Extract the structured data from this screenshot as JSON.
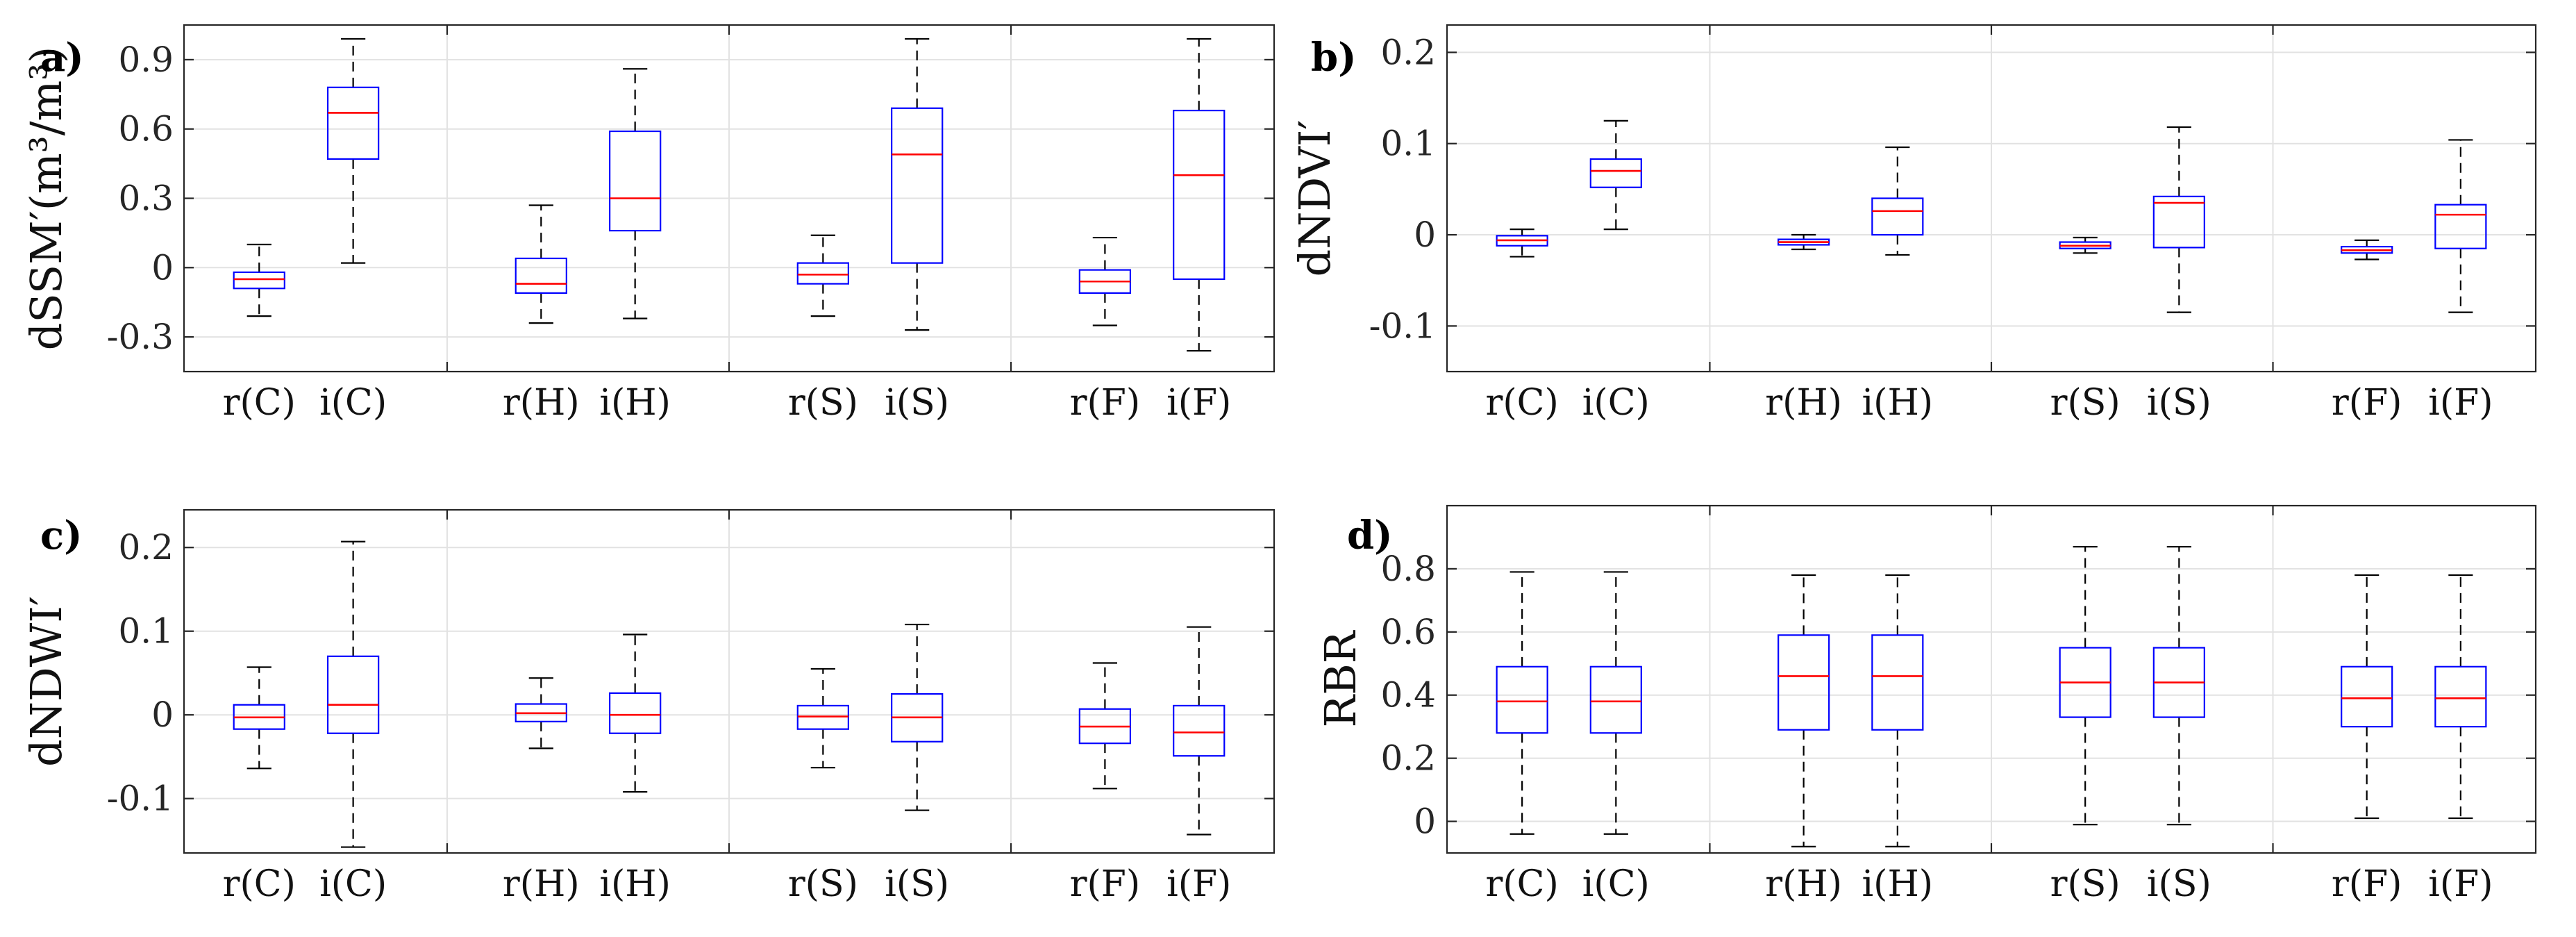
{
  "chart_data": [
    {
      "type": "box",
      "panel": "a)",
      "ylabel": "dSSM′(m³/m³)",
      "ylim": [
        -0.45,
        1.05
      ],
      "yticks": [
        -0.3,
        0,
        0.3,
        0.6,
        0.9
      ],
      "ytick_labels": [
        "-0.3",
        "0",
        "0.3",
        "0.6",
        "0.9"
      ],
      "categories": [
        "r(C)",
        "i(C)",
        "r(H)",
        "i(H)",
        "r(S)",
        "i(S)",
        "r(F)",
        "i(F)"
      ],
      "boxes": [
        {
          "min": -0.21,
          "q1": -0.09,
          "median": -0.05,
          "q3": -0.02,
          "max": 0.1
        },
        {
          "min": 0.02,
          "q1": 0.47,
          "median": 0.67,
          "q3": 0.78,
          "max": 0.99
        },
        {
          "min": -0.24,
          "q1": -0.11,
          "median": -0.07,
          "q3": 0.04,
          "max": 0.27
        },
        {
          "min": -0.22,
          "q1": 0.16,
          "median": 0.3,
          "q3": 0.59,
          "max": 0.86
        },
        {
          "min": -0.21,
          "q1": -0.07,
          "median": -0.03,
          "q3": 0.02,
          "max": 0.14
        },
        {
          "min": -0.27,
          "q1": 0.02,
          "median": 0.49,
          "q3": 0.69,
          "max": 0.99
        },
        {
          "min": -0.25,
          "q1": -0.11,
          "median": -0.06,
          "q3": -0.01,
          "max": 0.13
        },
        {
          "min": -0.36,
          "q1": -0.05,
          "median": 0.4,
          "q3": 0.68,
          "max": 0.99
        }
      ]
    },
    {
      "type": "box",
      "panel": "b)",
      "ylabel": "dNDVI′",
      "ylim": [
        -0.15,
        0.23
      ],
      "yticks": [
        -0.1,
        0,
        0.1,
        0.2
      ],
      "ytick_labels": [
        "-0.1",
        "0",
        "0.1",
        "0.2"
      ],
      "categories": [
        "r(C)",
        "i(C)",
        "r(H)",
        "i(H)",
        "r(S)",
        "i(S)",
        "r(F)",
        "i(F)"
      ],
      "boxes": [
        {
          "min": -0.024,
          "q1": -0.012,
          "median": -0.006,
          "q3": -0.001,
          "max": 0.006
        },
        {
          "min": 0.006,
          "q1": 0.052,
          "median": 0.07,
          "q3": 0.083,
          "max": 0.125
        },
        {
          "min": -0.016,
          "q1": -0.011,
          "median": -0.008,
          "q3": -0.005,
          "max": 0.0
        },
        {
          "min": -0.022,
          "q1": 0.0,
          "median": 0.026,
          "q3": 0.04,
          "max": 0.096
        },
        {
          "min": -0.02,
          "q1": -0.015,
          "median": -0.012,
          "q3": -0.008,
          "max": -0.003
        },
        {
          "min": -0.085,
          "q1": -0.014,
          "median": 0.035,
          "q3": 0.042,
          "max": 0.118
        },
        {
          "min": -0.027,
          "q1": -0.02,
          "median": -0.017,
          "q3": -0.013,
          "max": -0.006
        },
        {
          "min": -0.085,
          "q1": -0.015,
          "median": 0.022,
          "q3": 0.033,
          "max": 0.104
        }
      ]
    },
    {
      "type": "box",
      "panel": "c)",
      "ylabel": "dNDWI′",
      "ylim": [
        -0.165,
        0.245
      ],
      "yticks": [
        -0.1,
        0,
        0.1,
        0.2
      ],
      "ytick_labels": [
        "-0.1",
        "0",
        "0.1",
        "0.2"
      ],
      "categories": [
        "r(C)",
        "i(C)",
        "r(H)",
        "i(H)",
        "r(S)",
        "i(S)",
        "r(F)",
        "i(F)"
      ],
      "boxes": [
        {
          "min": -0.064,
          "q1": -0.017,
          "median": -0.003,
          "q3": 0.012,
          "max": 0.057
        },
        {
          "min": -0.158,
          "q1": -0.022,
          "median": 0.012,
          "q3": 0.07,
          "max": 0.207
        },
        {
          "min": -0.04,
          "q1": -0.008,
          "median": 0.002,
          "q3": 0.013,
          "max": 0.044
        },
        {
          "min": -0.092,
          "q1": -0.022,
          "median": 0.0,
          "q3": 0.026,
          "max": 0.096
        },
        {
          "min": -0.063,
          "q1": -0.017,
          "median": -0.002,
          "q3": 0.011,
          "max": 0.055
        },
        {
          "min": -0.114,
          "q1": -0.032,
          "median": -0.003,
          "q3": 0.025,
          "max": 0.108
        },
        {
          "min": -0.088,
          "q1": -0.034,
          "median": -0.014,
          "q3": 0.007,
          "max": 0.062
        },
        {
          "min": -0.143,
          "q1": -0.049,
          "median": -0.021,
          "q3": 0.011,
          "max": 0.105
        }
      ]
    },
    {
      "type": "box",
      "panel": "d)",
      "ylabel": "RBR",
      "ylim": [
        -0.1,
        1.0
      ],
      "yticks": [
        0,
        0.2,
        0.4,
        0.6,
        0.8
      ],
      "ytick_labels": [
        "0",
        "0.2",
        "0.4",
        "0.6",
        "0.8"
      ],
      "categories": [
        "r(C)",
        "i(C)",
        "r(H)",
        "i(H)",
        "r(S)",
        "i(S)",
        "r(F)",
        "i(F)"
      ],
      "boxes": [
        {
          "min": -0.04,
          "q1": 0.28,
          "median": 0.38,
          "q3": 0.49,
          "max": 0.79
        },
        {
          "min": -0.04,
          "q1": 0.28,
          "median": 0.38,
          "q3": 0.49,
          "max": 0.79
        },
        {
          "min": -0.08,
          "q1": 0.29,
          "median": 0.46,
          "q3": 0.59,
          "max": 0.78
        },
        {
          "min": -0.08,
          "q1": 0.29,
          "median": 0.46,
          "q3": 0.59,
          "max": 0.78
        },
        {
          "min": -0.01,
          "q1": 0.33,
          "median": 0.44,
          "q3": 0.55,
          "max": 0.87
        },
        {
          "min": -0.01,
          "q1": 0.33,
          "median": 0.44,
          "q3": 0.55,
          "max": 0.87
        },
        {
          "min": 0.01,
          "q1": 0.3,
          "median": 0.39,
          "q3": 0.49,
          "max": 0.78
        },
        {
          "min": 0.01,
          "q1": 0.3,
          "median": 0.39,
          "q3": 0.49,
          "max": 0.78
        }
      ]
    }
  ]
}
